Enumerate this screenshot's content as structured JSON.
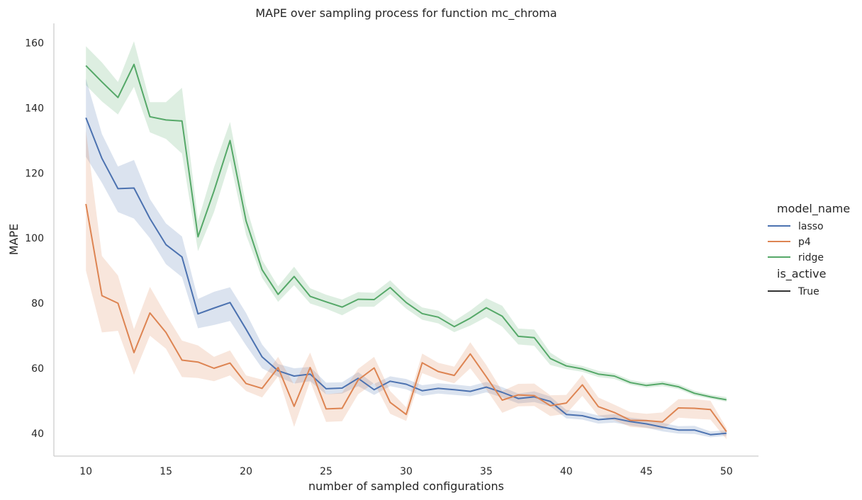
{
  "chart_data": {
    "type": "line",
    "title": "MAPE over sampling process for function mc_chroma",
    "xlabel": "number of sampled configurations",
    "ylabel": "MAPE",
    "xlim": [
      8,
      52
    ],
    "ylim": [
      33,
      166
    ],
    "x_ticks": [
      10,
      15,
      20,
      25,
      30,
      35,
      40,
      45,
      50
    ],
    "y_ticks": [
      40,
      60,
      80,
      100,
      120,
      140,
      160
    ],
    "grid": false,
    "legend_position": "right",
    "legend": {
      "title_hue": "model_name",
      "title_style": "is_active",
      "style_entries": [
        "True"
      ]
    },
    "x": [
      10,
      11,
      12,
      13,
      14,
      15,
      16,
      17,
      18,
      19,
      20,
      21,
      22,
      23,
      24,
      25,
      26,
      27,
      28,
      29,
      30,
      31,
      32,
      33,
      34,
      35,
      36,
      37,
      38,
      39,
      40,
      41,
      42,
      43,
      44,
      45,
      46,
      47,
      48,
      49,
      50
    ],
    "series": [
      {
        "name": "lasso",
        "color": "#4c72b0",
        "values": [
          137,
          124.5,
          115.2,
          115.4,
          106,
          98,
          94.2,
          76.7,
          78.5,
          80.2,
          72,
          63.5,
          59.2,
          57.6,
          58.2,
          53.7,
          53.9,
          56.9,
          53.4,
          56,
          55.1,
          53.1,
          53.8,
          53.4,
          52.9,
          54.2,
          52.6,
          50.7,
          51.2,
          49.8,
          45.8,
          45.4,
          44.2,
          44.6,
          43.6,
          42.9,
          41.9,
          41,
          41,
          39.6,
          40
        ],
        "lower": [
          125,
          117,
          108,
          106,
          100,
          92,
          88,
          72.3,
          73.3,
          74.5,
          67,
          60,
          57.4,
          55.3,
          56,
          52,
          52.2,
          54.5,
          51.8,
          54.5,
          53.5,
          51.5,
          52.2,
          51.8,
          51.4,
          52.6,
          51,
          49.2,
          49.6,
          48.3,
          44.6,
          44.2,
          43,
          43.3,
          42.4,
          41.7,
          40.6,
          39.9,
          39.8,
          38.8,
          39.2
        ],
        "upper": [
          149,
          132,
          122,
          124,
          112,
          104.5,
          100.5,
          81.3,
          83.5,
          84.9,
          77,
          67.3,
          61.3,
          60,
          60.4,
          55.6,
          55.7,
          58.8,
          55.2,
          57.5,
          56.7,
          54.8,
          55.4,
          55,
          54.5,
          55.8,
          54.2,
          52.2,
          52.9,
          51.3,
          47.2,
          46.7,
          45.5,
          45.9,
          44.8,
          44.2,
          43.2,
          42.2,
          42.3,
          40.6,
          40.9
        ]
      },
      {
        "name": "p4",
        "color": "#dd8452",
        "values": [
          110.5,
          82.3,
          80,
          64.8,
          77,
          71,
          62.5,
          61.9,
          60,
          61.6,
          55.3,
          53.8,
          60.2,
          48.3,
          60.2,
          47.5,
          47.7,
          56.4,
          60.1,
          49.5,
          45.8,
          61.7,
          59,
          57.8,
          64.4,
          57.4,
          50.2,
          51.8,
          51.6,
          48.5,
          49.3,
          54.9,
          48.2,
          46.4,
          44,
          43.9,
          43.5,
          47.8,
          47.7,
          47.3,
          40.5
        ],
        "lower": [
          90,
          71,
          71.5,
          58,
          70,
          66,
          57.3,
          57,
          56,
          57.8,
          53,
          51,
          57.5,
          42,
          56,
          43.5,
          43.7,
          52,
          55.5,
          46,
          43.8,
          58.5,
          56.6,
          55.4,
          60,
          53.5,
          46.3,
          48.3,
          48.4,
          45.3,
          46,
          51.5,
          45.4,
          44,
          42,
          41.6,
          41.2,
          44.8,
          44.5,
          44.2,
          38.2
        ],
        "upper": [
          133,
          94.5,
          88.5,
          72,
          85,
          76.5,
          68.5,
          67,
          63.5,
          65.5,
          57.8,
          56.5,
          63.5,
          55,
          64.8,
          52,
          52.5,
          59.8,
          63.5,
          53,
          48,
          64.5,
          61.7,
          60.5,
          68,
          61,
          53,
          55.2,
          55.3,
          51.7,
          51.8,
          58,
          51,
          48.8,
          46.5,
          46,
          46.4,
          50.5,
          50.5,
          50,
          41.6
        ]
      },
      {
        "name": "ridge",
        "color": "#55a868",
        "values": [
          153,
          148,
          143.2,
          153.4,
          137.3,
          136.3,
          136,
          100.4,
          114.5,
          130,
          105.3,
          90.3,
          82.7,
          88.2,
          82.1,
          80.4,
          78.8,
          81.2,
          81.1,
          84.8,
          80.2,
          76.8,
          75.7,
          72.8,
          75.4,
          78.6,
          76,
          69.8,
          69.4,
          63,
          60.7,
          59.8,
          58.2,
          57.6,
          55.6,
          54.7,
          55.3,
          54.3,
          52.3,
          51.2,
          50.3
        ],
        "lower": [
          147,
          142,
          138,
          146.5,
          132.5,
          130.5,
          126,
          96,
          108,
          123.8,
          101,
          87.8,
          80.4,
          85.5,
          79.9,
          78.3,
          76.3,
          78.9,
          78.9,
          82.8,
          78.3,
          74.9,
          73.8,
          71.1,
          73.1,
          75.7,
          72.8,
          67.3,
          66.9,
          61,
          59.7,
          58.9,
          57.3,
          56.7,
          54.9,
          54,
          54.5,
          53.6,
          51.6,
          50.6,
          49.7
        ],
        "upper": [
          159,
          154,
          148,
          160.5,
          141.8,
          141.8,
          146.2,
          105.3,
          121.8,
          135.7,
          110,
          93.3,
          85.2,
          91.2,
          84.6,
          82.6,
          81.1,
          83.4,
          83.2,
          87,
          82.2,
          78.7,
          77.7,
          74.5,
          77.7,
          81.5,
          79.2,
          72.2,
          71.9,
          64.8,
          61.7,
          60.7,
          59.2,
          58.4,
          56.4,
          55.5,
          56.1,
          55.1,
          53.1,
          51.9,
          51.1
        ]
      }
    ]
  }
}
